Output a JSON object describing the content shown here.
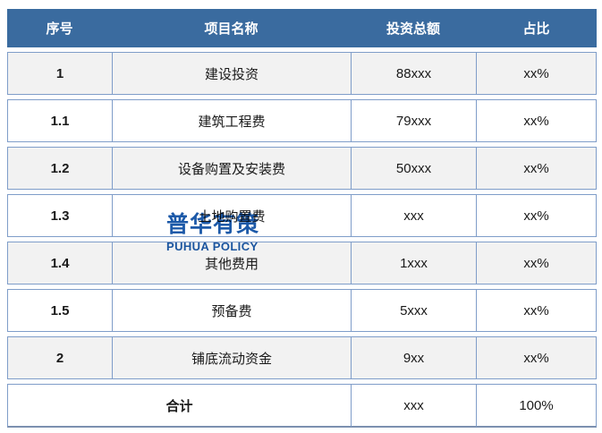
{
  "table": {
    "headers": [
      "序号",
      "项目名称",
      "投资总额",
      "占比"
    ],
    "rows": [
      {
        "index": "1",
        "name": "建设投资",
        "amount": "88xxx",
        "ratio": "xx%"
      },
      {
        "index": "1.1",
        "name": "建筑工程费",
        "amount": "79xxx",
        "ratio": "xx%"
      },
      {
        "index": "1.2",
        "name": "设备购置及安装费",
        "amount": "50xxx",
        "ratio": "xx%"
      },
      {
        "index": "1.3",
        "name": "土地购置费",
        "amount": "xxx",
        "ratio": "xx%"
      },
      {
        "index": "1.4",
        "name": "其他费用",
        "amount": "1xxx",
        "ratio": "xx%"
      },
      {
        "index": "1.5",
        "name": "预备费",
        "amount": "5xxx",
        "ratio": "xx%"
      },
      {
        "index": "2",
        "name": "铺底流动资金",
        "amount": "9xx",
        "ratio": "xx%"
      }
    ],
    "footer": {
      "label": "合计",
      "amount": "xxx",
      "ratio": "100%"
    }
  },
  "watermark": {
    "cn": "普华有策",
    "en": "PUHUA POLICY",
    "color": "#1C59A8"
  },
  "colors": {
    "header_bg": "#3A6B9F",
    "cell_border": "#7F9DC9",
    "alt_row_bg": "#F2F2F2",
    "bottom_border": "#7C90B0"
  }
}
